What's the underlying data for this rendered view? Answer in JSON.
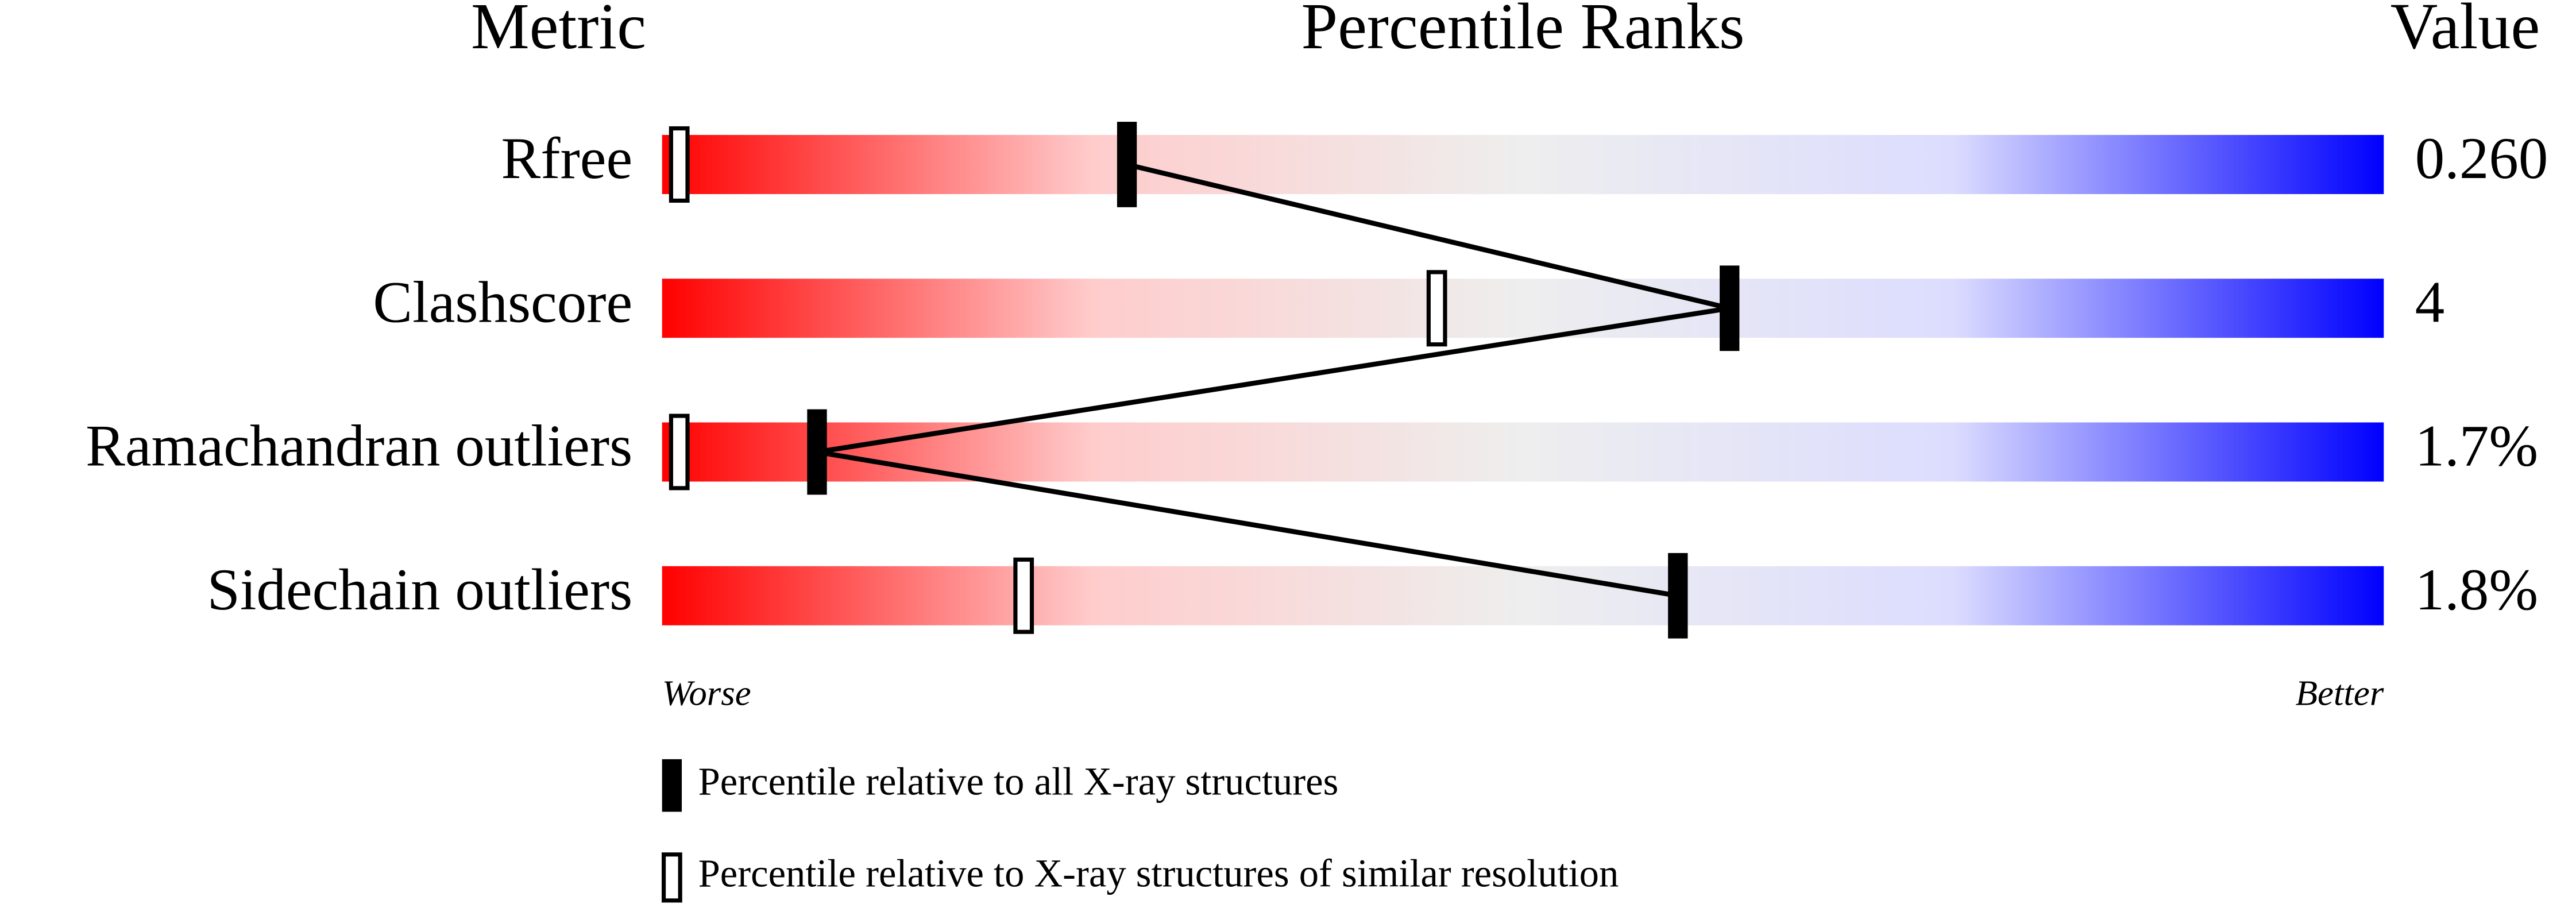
{
  "chart_data": {
    "type": "percentile-slider",
    "headers": [
      "Metric",
      "Percentile Ranks",
      "Value"
    ],
    "categories": [
      "Rfree",
      "Clashscore",
      "Ramachandran outliers",
      "Sidechain outliers"
    ],
    "metric_values": [
      "0.260",
      "4",
      "1.7%",
      "1.8%"
    ],
    "xlim": [
      0,
      100
    ],
    "x_label_low": "Worse",
    "x_label_high": "Better",
    "gradient_colors": [
      "#ff0000",
      "#ffcccc",
      "#eeeeee",
      "#dcdcff",
      "#0000ff"
    ],
    "series": [
      {
        "name": "Percentile relative to all X-ray structures",
        "color": "#000000",
        "fill": true,
        "values": [
          27,
          62,
          9,
          59
        ]
      },
      {
        "name": "Percentile relative to X-ray structures of similar resolution",
        "color": "#000000",
        "fill": false,
        "values": [
          1,
          45,
          1,
          21
        ]
      }
    ]
  }
}
